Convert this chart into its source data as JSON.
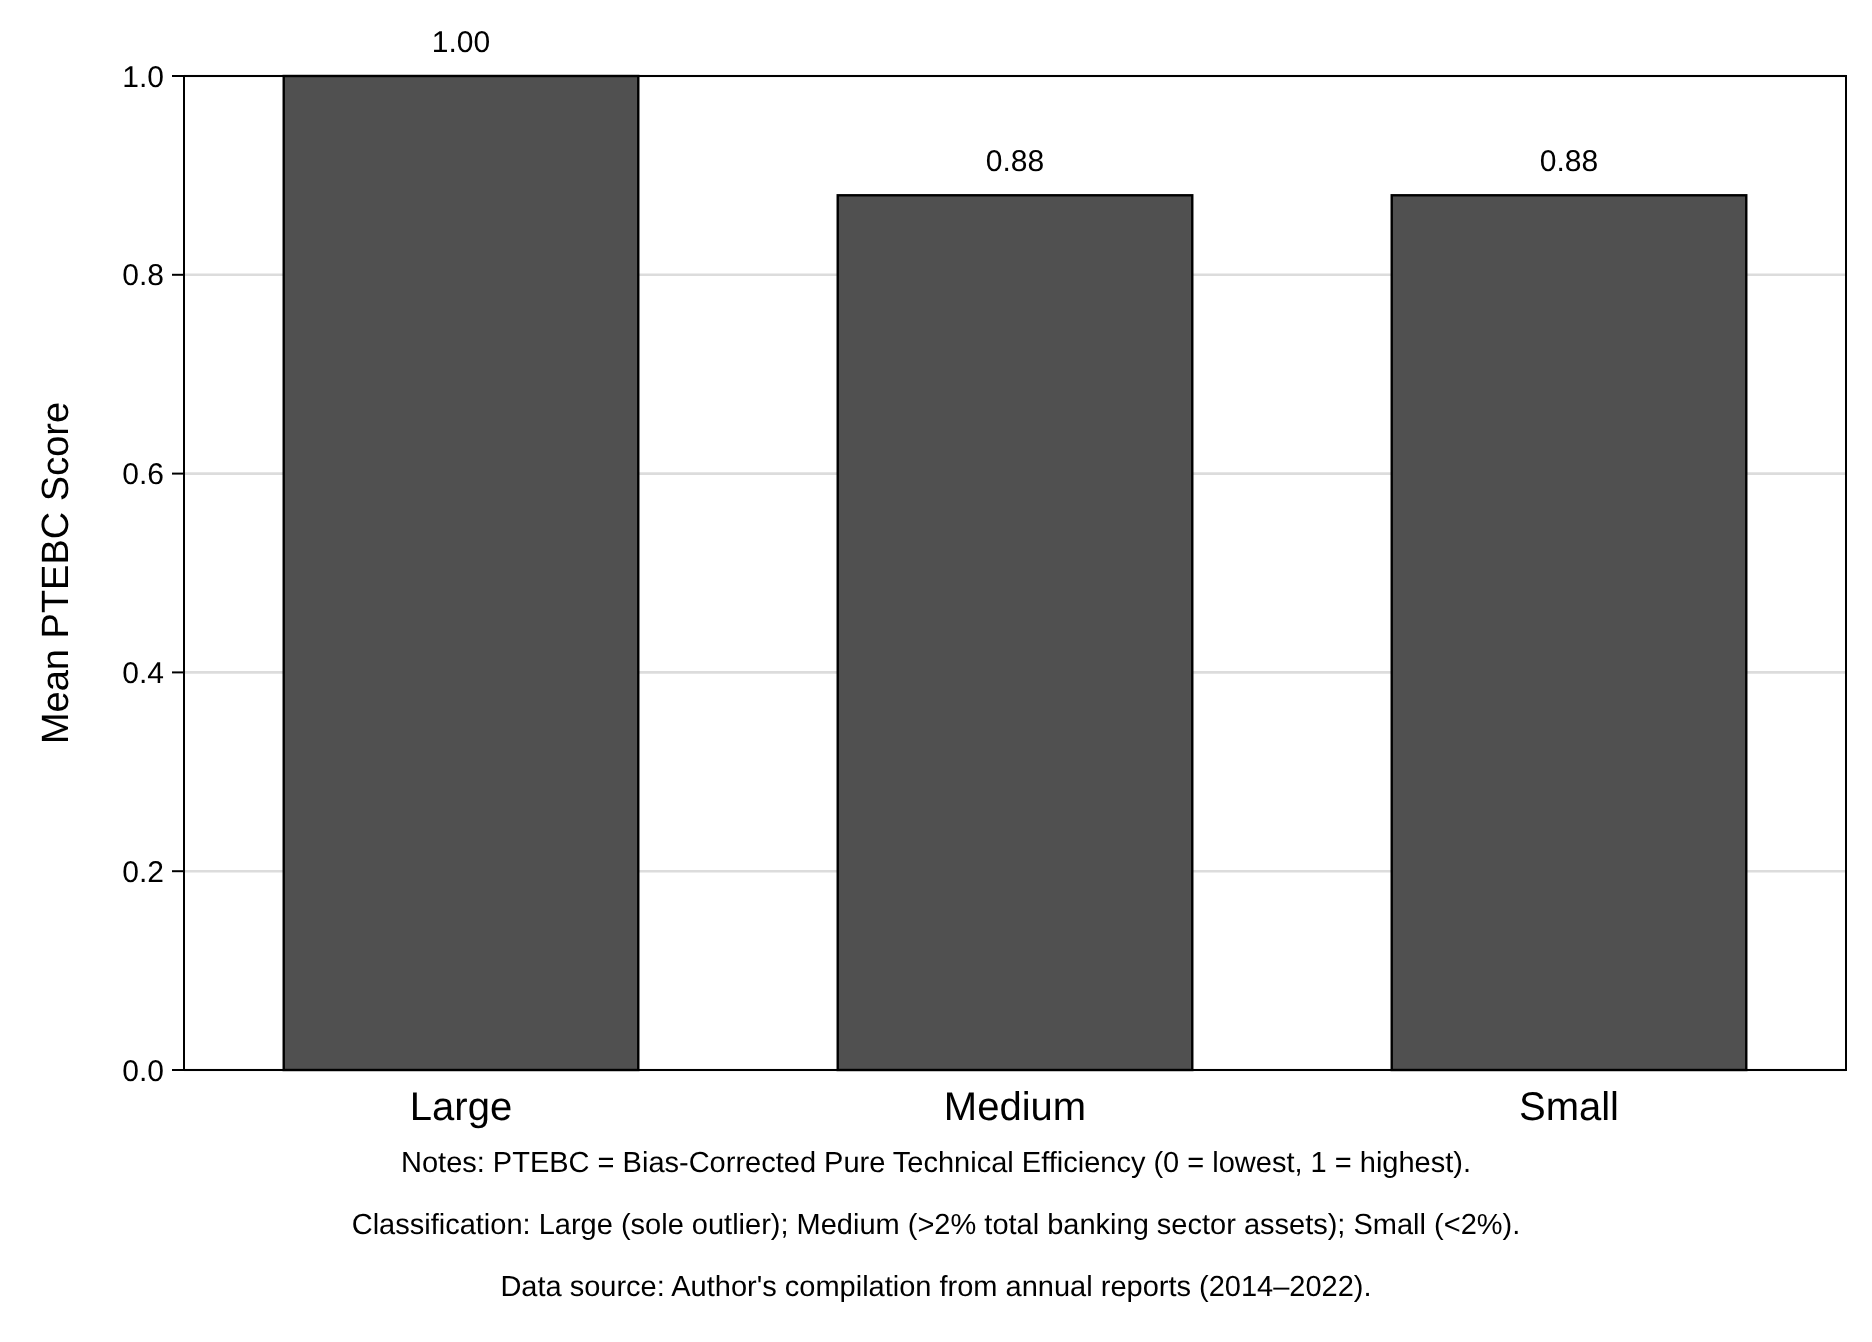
{
  "chart_data": {
    "type": "bar",
    "ylabel": "Mean PTEBC Score",
    "categories": [
      "Large",
      "Medium",
      "Small"
    ],
    "values": [
      1.0,
      0.88,
      0.88
    ],
    "color": "#505050",
    "ylim": [
      0,
      1.0
    ],
    "yticks": [
      {
        "value": 0,
        "label": "0.0"
      },
      {
        "value": 0.2,
        "label": "0.2"
      },
      {
        "value": 0.4,
        "label": "0.4"
      },
      {
        "value": 0.6,
        "label": "0.6"
      },
      {
        "value": 0.8,
        "label": "0.8"
      },
      {
        "value": 1.0,
        "label": "1.0"
      }
    ],
    "grid": "y",
    "value_labels": [
      "1.00",
      "0.88",
      "0.88"
    ],
    "annotations": [
      "Notes: PTEBC = Bias-Corrected Pure Technical Efficiency (0 = lowest, 1 = highest).",
      "Classification: Large (sole outlier); Medium (>2% total banking sector assets); Small (<2%).",
      "Data source: Author's compilation from annual reports (2014–2022)."
    ]
  }
}
